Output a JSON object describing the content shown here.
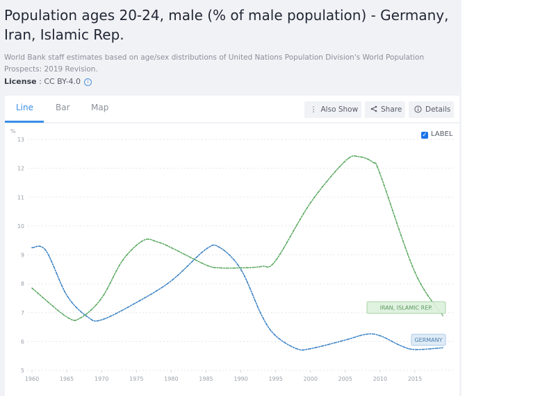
{
  "header": {
    "title": "Population ages 20-24, male (% of male population) - Germany, Iran, Islamic Rep.",
    "description": "World Bank staff estimates based on age/sex distributions of United Nations Population Division's World Population Prospects: 2019 Revision.",
    "license_label": "License",
    "license_separator": " : ",
    "license_value": "CC BY-4.0",
    "license_info_icon": "info-icon"
  },
  "tabs": [
    {
      "label": "Line",
      "active": true
    },
    {
      "label": "Bar",
      "active": false
    },
    {
      "label": "Map",
      "active": false
    }
  ],
  "toolbar": {
    "also_show": {
      "label": "Also Show",
      "icon": "vertical-dots-icon"
    },
    "share": {
      "label": "Share",
      "icon": "share-icon"
    },
    "details": {
      "label": "Details",
      "icon": "info-icon"
    }
  },
  "label_toggle": {
    "label": "LABEL",
    "checked": true
  },
  "colors": {
    "germany": "#3b82c4",
    "iran": "#5aa860",
    "accent": "#3a8ee6"
  },
  "chart_data": {
    "type": "line",
    "title": "Population ages 20-24, male (% of male population) - Germany, Iran, Islamic Rep.",
    "xlabel": "",
    "ylabel": "%",
    "xlim": [
      1960,
      2019
    ],
    "ylim": [
      5,
      13
    ],
    "grid": true,
    "x_ticks": [
      "1960",
      "1965",
      "1970",
      "1975",
      "1980",
      "1985",
      "1990",
      "1995",
      "2000",
      "2005",
      "2010",
      "2015"
    ],
    "y_ticks": [
      "5",
      "6",
      "7",
      "8",
      "9",
      "10",
      "11",
      "12",
      "13"
    ],
    "series": [
      {
        "name": "GERMANY",
        "color": "#3b82c4",
        "points": [
          [
            1960,
            9.25
          ],
          [
            1962,
            9.15
          ],
          [
            1965,
            7.6
          ],
          [
            1968,
            6.85
          ],
          [
            1970,
            6.75
          ],
          [
            1975,
            7.35
          ],
          [
            1980,
            8.1
          ],
          [
            1985,
            9.2
          ],
          [
            1987,
            9.25
          ],
          [
            1990,
            8.5
          ],
          [
            1993,
            6.9
          ],
          [
            1995,
            6.2
          ],
          [
            1998,
            5.75
          ],
          [
            2000,
            5.75
          ],
          [
            2005,
            6.05
          ],
          [
            2008,
            6.25
          ],
          [
            2010,
            6.2
          ],
          [
            2013,
            5.85
          ],
          [
            2015,
            5.72
          ],
          [
            2019,
            5.78
          ]
        ]
      },
      {
        "name": "IRAN, ISLAMIC REP.",
        "color": "#5aa860",
        "points": [
          [
            1960,
            7.85
          ],
          [
            1965,
            6.85
          ],
          [
            1967,
            6.82
          ],
          [
            1970,
            7.5
          ],
          [
            1973,
            8.8
          ],
          [
            1976,
            9.5
          ],
          [
            1978,
            9.45
          ],
          [
            1980,
            9.25
          ],
          [
            1985,
            8.65
          ],
          [
            1987,
            8.55
          ],
          [
            1990,
            8.55
          ],
          [
            1993,
            8.6
          ],
          [
            1995,
            8.8
          ],
          [
            2000,
            10.8
          ],
          [
            2005,
            12.25
          ],
          [
            2007,
            12.4
          ],
          [
            2009,
            12.2
          ],
          [
            2010,
            11.8
          ],
          [
            2015,
            8.4
          ],
          [
            2019,
            6.9
          ]
        ]
      }
    ]
  }
}
